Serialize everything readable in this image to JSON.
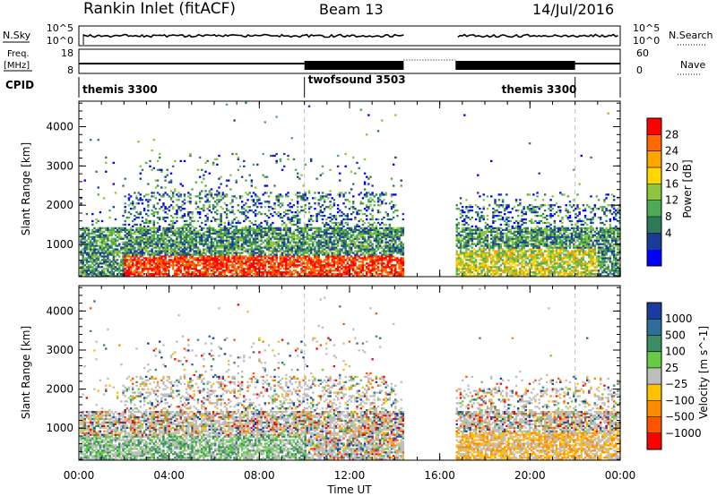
{
  "header": {
    "station": "Rankin Inlet (fitACF)",
    "beam": "Beam 13",
    "date": "14/Jul/2016"
  },
  "summary": {
    "nsky_label": "N.Sky",
    "nsearch_label": "N.Search",
    "nsky_ticks": [
      "10^5",
      "10^0"
    ],
    "nsearch_ticks": [
      "10^5",
      "10^0"
    ],
    "freq_label_top": "Freq.",
    "freq_label_unit": "[MHz]",
    "freq_ticks": [
      "18",
      "8"
    ],
    "nave_label": "Nave",
    "nave_ticks": [
      "60",
      "0"
    ],
    "cpid_label": "CPID",
    "cpid_segments": [
      {
        "name": "themis 3300",
        "start_hour": 0,
        "end_hour": 10
      },
      {
        "name": "twofsound 3503",
        "start_hour": 10,
        "end_hour": 22
      },
      {
        "name": "themis 3300",
        "start_hour": 22,
        "end_hour": 24
      }
    ]
  },
  "chart_data": [
    {
      "type": "heatmap",
      "panel": "power",
      "ylabel": "Slant Range [km]",
      "xlabel": "Time UT",
      "ylim": [
        180,
        4650
      ],
      "xlim": [
        0,
        24
      ],
      "yticks": [
        1000,
        2000,
        3000,
        4000
      ],
      "xtick_labels": [
        "00:00",
        "04:00",
        "08:00",
        "12:00",
        "16:00",
        "20:00",
        "00:00"
      ],
      "xtick_hours": [
        0,
        4,
        8,
        12,
        16,
        20,
        24
      ],
      "colorbar": {
        "label": "Power [dB]",
        "ticks": [
          "28",
          "24",
          "20",
          "16",
          "12",
          "8",
          "4"
        ],
        "colors": [
          "#0000ff",
          "#1a3c96",
          "#2f7a5a",
          "#4daa55",
          "#8cc63e",
          "#ffd700",
          "#ffa500",
          "#ff6a00",
          "#ff0000"
        ]
      },
      "data_gap_hours": [
        14.4,
        16.7
      ],
      "cpid_change_hours": [
        10,
        22
      ]
    },
    {
      "type": "heatmap",
      "panel": "velocity",
      "ylabel": "Slant Range [km]",
      "xlabel": "Time UT",
      "ylim": [
        180,
        4650
      ],
      "xlim": [
        0,
        24
      ],
      "yticks": [
        1000,
        2000,
        3000,
        4000
      ],
      "xtick_labels": [
        "00:00",
        "04:00",
        "08:00",
        "12:00",
        "16:00",
        "20:00",
        "00:00"
      ],
      "xtick_hours": [
        0,
        4,
        8,
        12,
        16,
        20,
        24
      ],
      "colorbar": {
        "label": "Velocity [m s^-1]",
        "ticks": [
          "1000",
          "500",
          "100",
          "25",
          "−25",
          "−100",
          "−500",
          "−1000"
        ],
        "colors": [
          "#1a3ca0",
          "#2e6e9a",
          "#3c8c64",
          "#66cc44",
          "#bebebe",
          "#ffc000",
          "#ff8c00",
          "#ff5500",
          "#ff0000"
        ]
      },
      "data_gap_hours": [
        14.4,
        16.7
      ],
      "cpid_change_hours": [
        10,
        22
      ]
    }
  ],
  "colors": {
    "axis": "#000000",
    "gap_line": "#bbbbbb"
  }
}
